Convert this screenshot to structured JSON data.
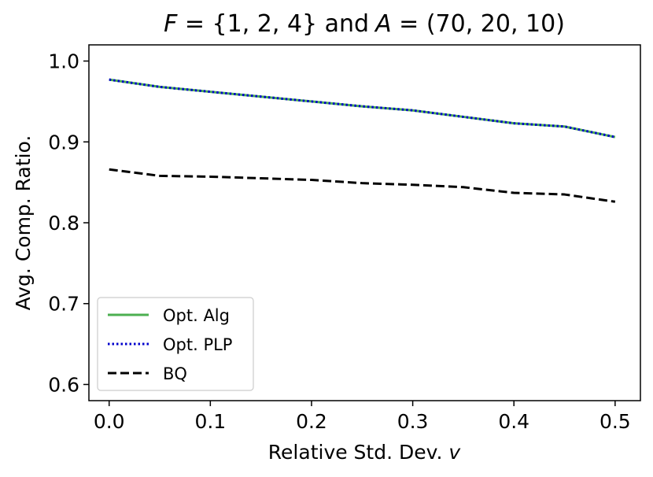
{
  "chart_data": {
    "type": "line",
    "title": "F = {1, 2, 4} and A = (70, 20, 10)",
    "title_parts": {
      "f_symbol": "F",
      "f_value": " = {1, 2, 4} ",
      "connector": "and",
      "a_symbol": "A",
      "a_value": " = (70, 20, 10)"
    },
    "xlabel": "Relative Std. Dev.",
    "xlabel_var": "v",
    "ylabel": "Avg. Comp. Ratio.",
    "xlim": [
      -0.02,
      0.525
    ],
    "ylim": [
      0.58,
      1.02
    ],
    "xticks": [
      0.0,
      0.1,
      0.2,
      0.3,
      0.4,
      0.5
    ],
    "xtick_labels": [
      "0.0",
      "0.1",
      "0.2",
      "0.3",
      "0.4",
      "0.5"
    ],
    "yticks": [
      0.6,
      0.7,
      0.8,
      0.9,
      1.0
    ],
    "ytick_labels": [
      "0.6",
      "0.7",
      "0.8",
      "0.9",
      "1.0"
    ],
    "grid": false,
    "legend_position": "lower-left",
    "x": [
      0.0,
      0.05,
      0.1,
      0.15,
      0.2,
      0.25,
      0.3,
      0.35,
      0.4,
      0.45,
      0.5
    ],
    "series": [
      {
        "name": "Opt. Alg",
        "color": "#4caf50",
        "style": "solid",
        "values": [
          0.977,
          0.968,
          0.962,
          0.956,
          0.95,
          0.944,
          0.939,
          0.931,
          0.923,
          0.919,
          0.906
        ]
      },
      {
        "name": "Opt. PLP",
        "color": "#0000cc",
        "style": "dotted",
        "values": [
          0.977,
          0.968,
          0.962,
          0.956,
          0.95,
          0.944,
          0.939,
          0.931,
          0.923,
          0.919,
          0.906
        ]
      },
      {
        "name": "BQ",
        "color": "#000000",
        "style": "dashed",
        "values": [
          0.866,
          0.858,
          0.857,
          0.855,
          0.853,
          0.849,
          0.847,
          0.844,
          0.837,
          0.835,
          0.826
        ]
      }
    ]
  }
}
